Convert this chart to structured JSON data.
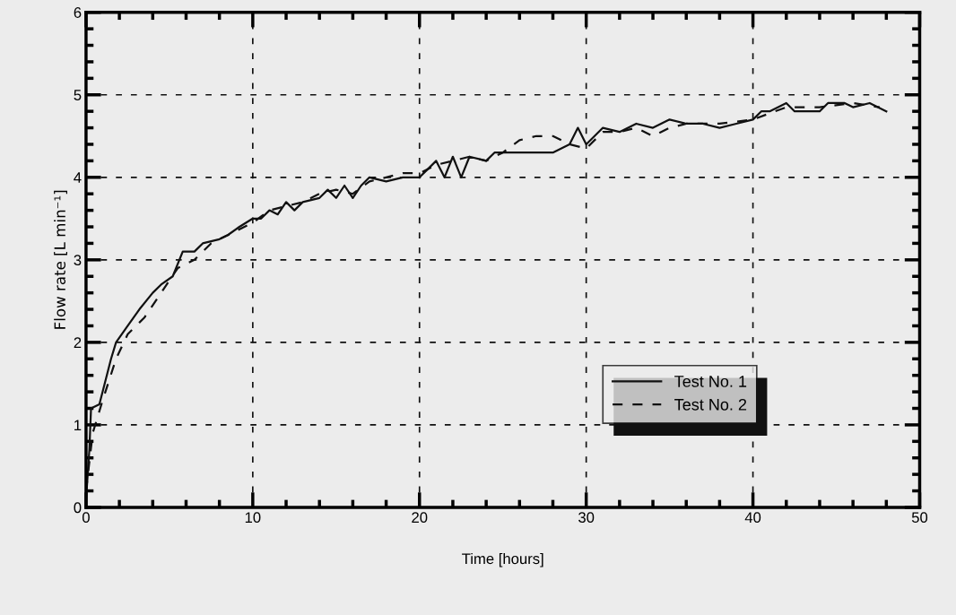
{
  "chart_data": {
    "type": "line",
    "xlabel": "Time [hours]",
    "ylabel": "Flow rate [L min⁻¹]",
    "xlim": [
      0,
      50
    ],
    "ylim": [
      0,
      6
    ],
    "xticks": [
      0,
      10,
      20,
      30,
      40,
      50
    ],
    "yticks": [
      0,
      1,
      2,
      3,
      4,
      5,
      6
    ],
    "grid": true,
    "legend": "bottom right",
    "marker": "none",
    "series": [
      {
        "name": "Test No. 1",
        "color": "#111111",
        "line_style": "solid",
        "x": [
          0,
          0.2,
          0.3,
          0.8,
          1.5,
          1.8,
          2.5,
          3.2,
          4,
          4.5,
          5.2,
          5.8,
          6.5,
          7,
          8,
          8.5,
          9.2,
          10,
          10.5,
          11,
          11.5,
          12,
          12.5,
          13,
          14,
          14.5,
          15,
          15.5,
          16,
          16.5,
          17,
          18,
          19,
          20,
          20.5,
          21,
          21.5,
          22,
          22.5,
          23,
          24,
          24.5,
          25,
          28,
          29,
          29.5,
          30,
          31,
          32,
          33,
          34,
          35,
          36,
          37,
          38,
          39,
          40,
          40.5,
          41,
          42,
          42.5,
          44,
          44.5,
          45.5,
          46,
          47,
          48
        ],
        "values": [
          0.1,
          0.7,
          1.2,
          1.25,
          1.8,
          2.0,
          2.2,
          2.4,
          2.6,
          2.7,
          2.8,
          3.1,
          3.1,
          3.2,
          3.25,
          3.3,
          3.4,
          3.5,
          3.5,
          3.6,
          3.55,
          3.7,
          3.6,
          3.7,
          3.75,
          3.85,
          3.75,
          3.9,
          3.75,
          3.9,
          4.0,
          3.95,
          4.0,
          4.0,
          4.1,
          4.2,
          4.0,
          4.25,
          4.0,
          4.25,
          4.2,
          4.3,
          4.3,
          4.3,
          4.4,
          4.6,
          4.4,
          4.6,
          4.55,
          4.65,
          4.6,
          4.7,
          4.65,
          4.65,
          4.6,
          4.65,
          4.7,
          4.8,
          4.8,
          4.9,
          4.8,
          4.8,
          4.9,
          4.9,
          4.85,
          4.9,
          4.8
        ]
      },
      {
        "name": "Test No. 2",
        "color": "#111111",
        "line_style": "dashed",
        "x": [
          0,
          0.4,
          1,
          1.8,
          2.5,
          3.5,
          4.5,
          5.5,
          6.5,
          7.5,
          9,
          10,
          11,
          12,
          13,
          14,
          15,
          16,
          17,
          18,
          19,
          20,
          21,
          22,
          23,
          24,
          25,
          26,
          27,
          28,
          29,
          30,
          31,
          32,
          33,
          34,
          35,
          36,
          38,
          40,
          42,
          44,
          46,
          47.6
        ],
        "values": [
          0.2,
          0.9,
          1.3,
          1.8,
          2.1,
          2.3,
          2.6,
          2.9,
          3.0,
          3.2,
          3.35,
          3.45,
          3.6,
          3.65,
          3.7,
          3.8,
          3.85,
          3.8,
          3.95,
          4.0,
          4.05,
          4.05,
          4.15,
          4.2,
          4.25,
          4.2,
          4.3,
          4.45,
          4.5,
          4.5,
          4.4,
          4.35,
          4.55,
          4.55,
          4.6,
          4.5,
          4.6,
          4.65,
          4.65,
          4.7,
          4.85,
          4.85,
          4.9,
          4.85
        ]
      }
    ]
  }
}
